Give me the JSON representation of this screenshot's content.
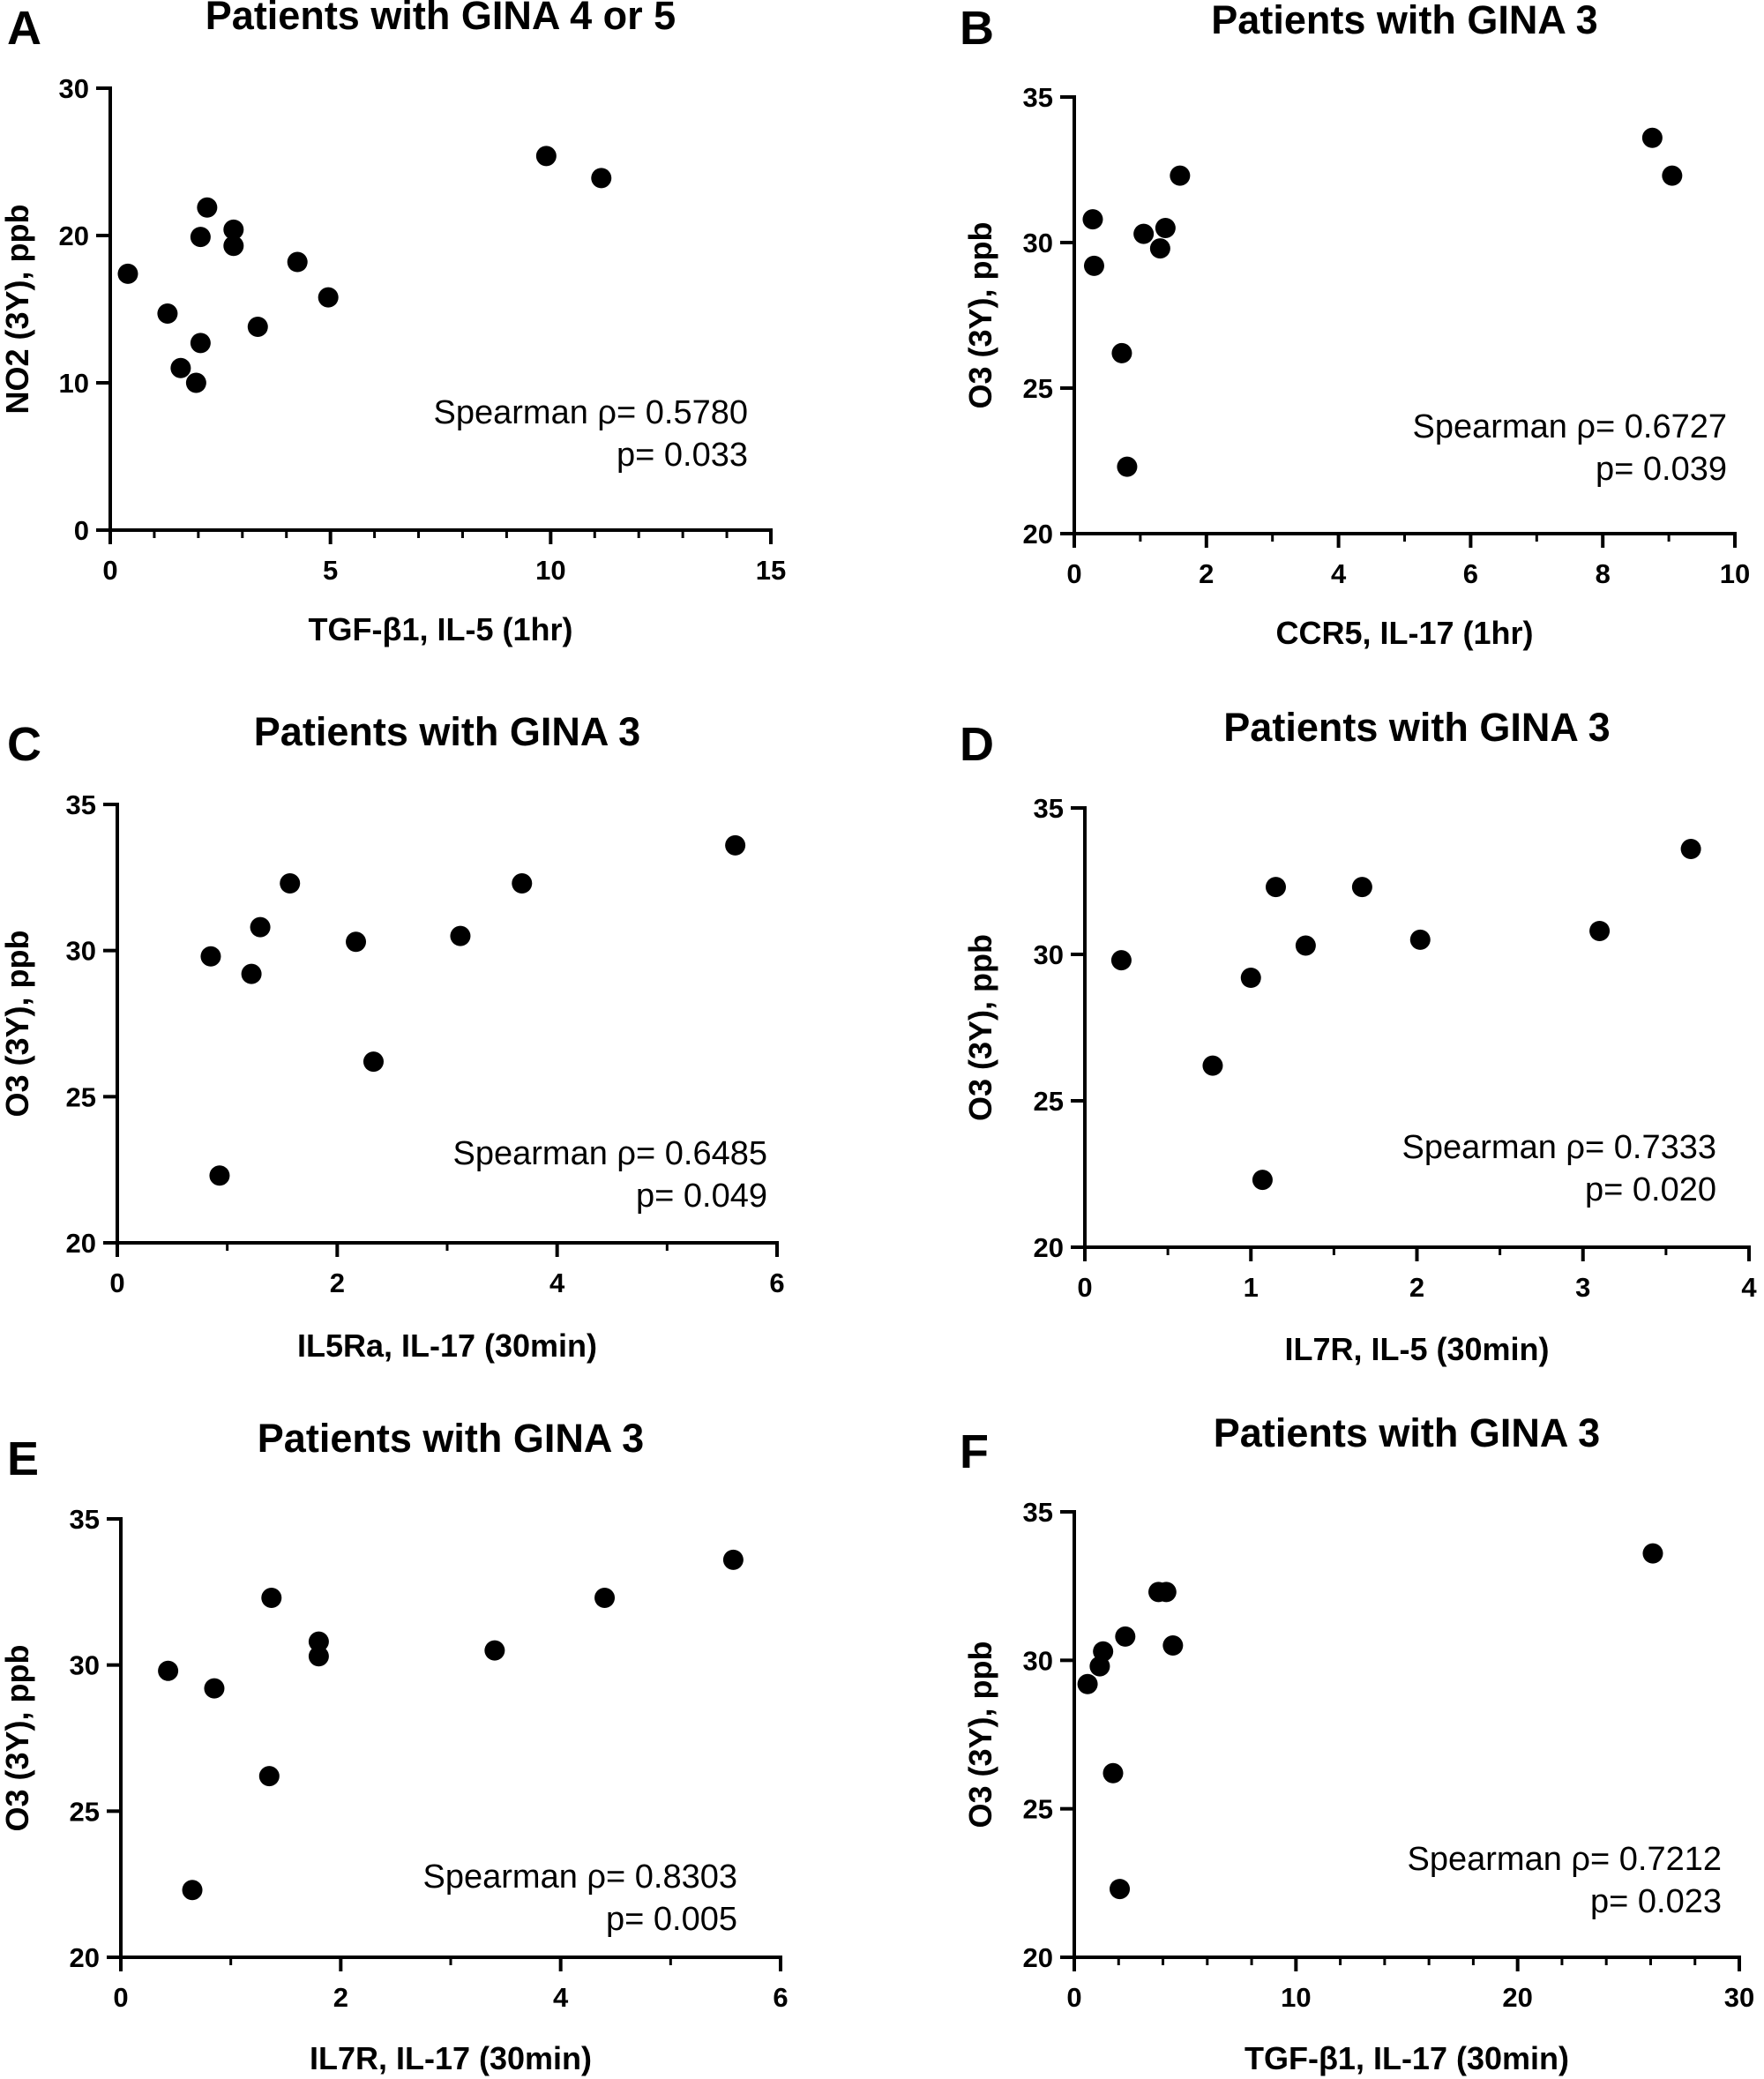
{
  "chart_data": [
    {
      "type": "scatter",
      "panel": "A",
      "title": "Patients with GINA 4 or 5",
      "xlabel": "TGF-β1, IL-5 (1hr)",
      "ylabel": "NO2 (3Y), ppb",
      "xlim": [
        0,
        15
      ],
      "ylim": [
        0,
        30
      ],
      "xticks": [
        0,
        5,
        10,
        15
      ],
      "yticks": [
        0,
        10,
        20,
        30
      ],
      "stats": {
        "rho": "Spearman ρ= 0.5780",
        "p": "p= 0.033"
      },
      "points": [
        {
          "x": 0.4,
          "y": 17.4
        },
        {
          "x": 1.3,
          "y": 14.7
        },
        {
          "x": 1.6,
          "y": 11.0
        },
        {
          "x": 1.95,
          "y": 10.0
        },
        {
          "x": 2.05,
          "y": 12.7
        },
        {
          "x": 2.05,
          "y": 19.9
        },
        {
          "x": 2.2,
          "y": 21.9
        },
        {
          "x": 2.8,
          "y": 20.4
        },
        {
          "x": 2.8,
          "y": 19.3
        },
        {
          "x": 3.35,
          "y": 13.8
        },
        {
          "x": 4.25,
          "y": 18.2
        },
        {
          "x": 4.95,
          "y": 15.8
        },
        {
          "x": 9.9,
          "y": 25.4
        },
        {
          "x": 11.15,
          "y": 23.9
        }
      ]
    },
    {
      "type": "scatter",
      "panel": "B",
      "title": "Patients with GINA 3",
      "xlabel": "CCR5, IL-17 (1hr)",
      "ylabel": "O3 (3Y), ppb",
      "xlim": [
        0,
        10
      ],
      "ylim": [
        20,
        35
      ],
      "xticks": [
        0,
        2,
        4,
        6,
        8,
        10
      ],
      "yticks": [
        20,
        25,
        30,
        35
      ],
      "stats": {
        "rho": "Spearman ρ= 0.6727",
        "p": "p= 0.039"
      },
      "points": [
        {
          "x": 0.28,
          "y": 30.8
        },
        {
          "x": 0.3,
          "y": 29.2
        },
        {
          "x": 0.72,
          "y": 26.2
        },
        {
          "x": 0.8,
          "y": 22.3
        },
        {
          "x": 1.05,
          "y": 30.3
        },
        {
          "x": 1.3,
          "y": 29.8
        },
        {
          "x": 1.38,
          "y": 30.5
        },
        {
          "x": 1.6,
          "y": 32.3
        },
        {
          "x": 8.75,
          "y": 33.6
        },
        {
          "x": 9.05,
          "y": 32.3
        }
      ]
    },
    {
      "type": "scatter",
      "panel": "C",
      "title": "Patients with GINA 3",
      "xlabel": "IL5Ra, IL-17 (30min)",
      "ylabel": "O3 (3Y), ppb",
      "xlim": [
        0,
        6
      ],
      "ylim": [
        20,
        35
      ],
      "xticks": [
        0,
        2,
        4,
        6
      ],
      "yticks": [
        20,
        25,
        30,
        35
      ],
      "stats": {
        "rho": "Spearman ρ= 0.6485",
        "p": "p= 0.049"
      },
      "points": [
        {
          "x": 0.85,
          "y": 29.8
        },
        {
          "x": 0.93,
          "y": 22.3
        },
        {
          "x": 1.22,
          "y": 29.2
        },
        {
          "x": 1.3,
          "y": 30.8
        },
        {
          "x": 1.57,
          "y": 32.3
        },
        {
          "x": 2.17,
          "y": 30.3
        },
        {
          "x": 2.33,
          "y": 26.2
        },
        {
          "x": 3.12,
          "y": 30.5
        },
        {
          "x": 3.68,
          "y": 32.3
        },
        {
          "x": 5.62,
          "y": 33.6
        }
      ]
    },
    {
      "type": "scatter",
      "panel": "D",
      "title": "Patients with GINA 3",
      "xlabel": "IL7R, IL-5 (30min)",
      "ylabel": "O3 (3Y), ppb",
      "xlim": [
        0,
        4
      ],
      "ylim": [
        20,
        35
      ],
      "xticks": [
        0,
        1,
        2,
        3,
        4
      ],
      "yticks": [
        20,
        25,
        30,
        35
      ],
      "stats": {
        "rho": "Spearman ρ= 0.7333",
        "p": "p= 0.020"
      },
      "points": [
        {
          "x": 0.22,
          "y": 29.8
        },
        {
          "x": 0.77,
          "y": 26.2
        },
        {
          "x": 1.0,
          "y": 29.2
        },
        {
          "x": 1.07,
          "y": 22.3
        },
        {
          "x": 1.15,
          "y": 32.3
        },
        {
          "x": 1.33,
          "y": 30.3
        },
        {
          "x": 1.67,
          "y": 32.3
        },
        {
          "x": 2.02,
          "y": 30.5
        },
        {
          "x": 3.1,
          "y": 30.8
        },
        {
          "x": 3.65,
          "y": 33.6
        }
      ]
    },
    {
      "type": "scatter",
      "panel": "E",
      "title": "Patients with GINA 3",
      "xlabel": "IL7R, IL-17 (30min)",
      "ylabel": "O3 (3Y), ppb",
      "xlim": [
        0,
        6
      ],
      "ylim": [
        20,
        35
      ],
      "xticks": [
        0,
        2,
        4,
        6
      ],
      "yticks": [
        20,
        25,
        30,
        35
      ],
      "stats": {
        "rho": "Spearman ρ= 0.8303",
        "p": "p= 0.005"
      },
      "points": [
        {
          "x": 0.43,
          "y": 29.8
        },
        {
          "x": 0.65,
          "y": 22.3
        },
        {
          "x": 0.85,
          "y": 29.2
        },
        {
          "x": 1.35,
          "y": 26.2
        },
        {
          "x": 1.37,
          "y": 32.3
        },
        {
          "x": 1.8,
          "y": 30.3
        },
        {
          "x": 1.8,
          "y": 30.8
        },
        {
          "x": 3.4,
          "y": 30.5
        },
        {
          "x": 4.4,
          "y": 32.3
        },
        {
          "x": 5.57,
          "y": 33.6
        }
      ]
    },
    {
      "type": "scatter",
      "panel": "F",
      "title": "Patients with GINA 3",
      "xlabel": "TGF-β1, IL-17 (30min)",
      "ylabel": "O3 (3Y), ppb",
      "xlim": [
        0,
        30
      ],
      "ylim": [
        20,
        35
      ],
      "xticks": [
        0,
        10,
        20,
        30
      ],
      "yticks": [
        20,
        25,
        30,
        35
      ],
      "stats": {
        "rho": "Spearman ρ= 0.7212",
        "p": "p= 0.023"
      },
      "points": [
        {
          "x": 0.6,
          "y": 29.2
        },
        {
          "x": 1.15,
          "y": 29.8
        },
        {
          "x": 1.3,
          "y": 30.3
        },
        {
          "x": 1.75,
          "y": 26.2
        },
        {
          "x": 2.05,
          "y": 22.3
        },
        {
          "x": 2.3,
          "y": 30.8
        },
        {
          "x": 3.8,
          "y": 32.3
        },
        {
          "x": 4.15,
          "y": 32.3
        },
        {
          "x": 4.45,
          "y": 30.5
        },
        {
          "x": 26.1,
          "y": 33.6
        }
      ]
    }
  ]
}
